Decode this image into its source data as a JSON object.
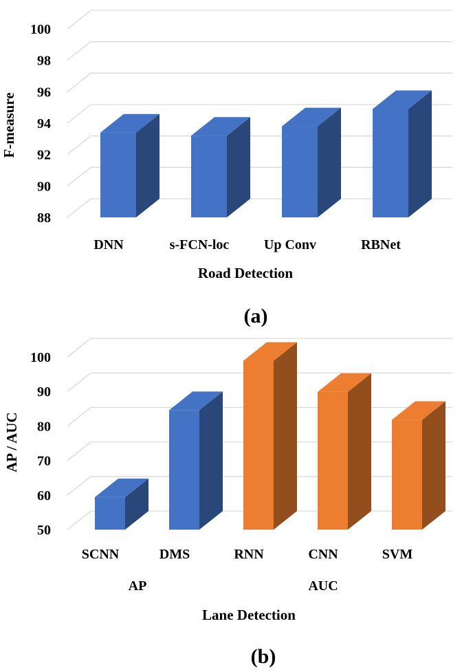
{
  "colors": {
    "blue": "#4472C4",
    "orange": "#ED7D31"
  },
  "chart_data": [
    {
      "type": "bar",
      "panel_label": "(a)",
      "title": "",
      "xlabel": "Road Detection",
      "ylabel": "F-measure",
      "ylim": [
        88,
        100
      ],
      "yticks": [
        "88",
        "90",
        "92",
        "94",
        "96",
        "98",
        "100"
      ],
      "categories": [
        "DNN",
        "s-FCN-loc",
        "Up Conv",
        "RBNet"
      ],
      "series": [
        {
          "name": "F-measure",
          "color": "blue",
          "values": [
            93.4,
            93.2,
            93.8,
            94.9
          ]
        }
      ]
    },
    {
      "type": "bar",
      "panel_label": "(b)",
      "title": "",
      "xlabel": "Lane Detection",
      "ylabel": "AP / AUC",
      "ylim": [
        50,
        100
      ],
      "yticks": [
        "50",
        "60",
        "70",
        "80",
        "90",
        "100"
      ],
      "categories": [
        "SCNN",
        "DMS",
        "RNN",
        "CNN",
        "SVM"
      ],
      "groups": [
        {
          "label": "AP",
          "categories": [
            "SCNN",
            "DMS"
          ]
        },
        {
          "label": "AUC",
          "categories": [
            "RNN",
            "CNN",
            "SVM"
          ]
        }
      ],
      "series": [
        {
          "name": "AP",
          "color": "blue",
          "values": [
            59.4,
            84.6,
            null,
            null,
            null
          ]
        },
        {
          "name": "AUC",
          "color": "orange",
          "values": [
            null,
            null,
            98.9,
            89.9,
            81.8
          ]
        }
      ]
    }
  ]
}
